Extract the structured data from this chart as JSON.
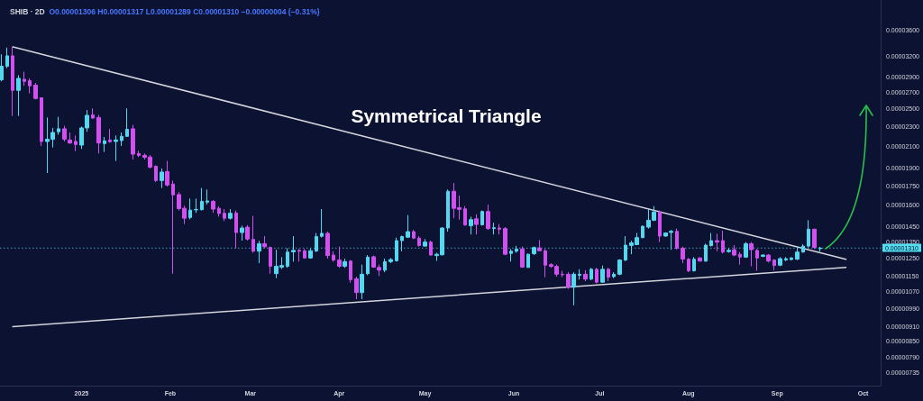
{
  "chart_data": {
    "type": "candlestick",
    "title": "SHIB · 2D",
    "subtitle": "O0.00001306 H0.00001317 L0.00001289 C0.00001310 −0.00000004 (−0.31%)",
    "annotations": [
      "Symmetrical Triangle"
    ],
    "x": [
      "2024-12-04",
      "2024-12-06",
      "2024-12-08",
      "2024-12-10",
      "2024-12-12",
      "2024-12-14",
      "2024-12-16",
      "2024-12-18",
      "2024-12-20",
      "2024-12-22",
      "2024-12-24",
      "2024-12-26",
      "2024-12-28",
      "2024-12-30",
      "2025-01-01",
      "2025-01-03",
      "2025-01-05",
      "2025-01-07",
      "2025-01-09",
      "2025-01-11",
      "2025-01-13",
      "2025-01-15",
      "2025-01-17",
      "2025-01-19",
      "2025-01-21",
      "2025-01-23",
      "2025-01-25",
      "2025-01-27",
      "2025-01-29",
      "2025-01-31",
      "2025-02-02",
      "2025-02-04",
      "2025-02-06",
      "2025-02-08",
      "2025-02-10",
      "2025-02-12",
      "2025-02-14",
      "2025-02-16",
      "2025-02-18",
      "2025-02-20",
      "2025-02-22",
      "2025-02-24",
      "2025-02-26",
      "2025-02-28",
      "2025-03-02",
      "2025-03-04",
      "2025-03-06",
      "2025-03-08",
      "2025-03-10",
      "2025-03-12",
      "2025-03-14",
      "2025-03-16",
      "2025-03-18",
      "2025-03-20",
      "2025-03-22",
      "2025-03-24",
      "2025-03-26",
      "2025-03-28",
      "2025-03-30",
      "2025-04-01",
      "2025-04-03",
      "2025-04-05",
      "2025-04-07",
      "2025-04-09",
      "2025-04-11",
      "2025-04-13",
      "2025-04-15",
      "2025-04-17",
      "2025-04-19",
      "2025-04-21",
      "2025-04-23",
      "2025-04-25",
      "2025-04-27",
      "2025-04-29",
      "2025-05-01",
      "2025-05-03",
      "2025-05-05",
      "2025-05-07",
      "2025-05-09",
      "2025-05-11",
      "2025-05-13",
      "2025-05-15",
      "2025-05-17",
      "2025-05-19",
      "2025-05-21",
      "2025-05-23",
      "2025-05-25",
      "2025-05-27",
      "2025-05-29",
      "2025-05-31",
      "2025-06-02",
      "2025-06-04",
      "2025-06-06",
      "2025-06-08",
      "2025-06-10",
      "2025-06-12",
      "2025-06-14",
      "2025-06-16",
      "2025-06-18",
      "2025-06-20",
      "2025-06-22",
      "2025-06-24",
      "2025-06-26",
      "2025-06-28",
      "2025-06-30",
      "2025-07-02",
      "2025-07-04",
      "2025-07-06",
      "2025-07-08",
      "2025-07-10",
      "2025-07-12",
      "2025-07-14",
      "2025-07-16",
      "2025-07-18",
      "2025-07-20",
      "2025-07-22",
      "2025-07-24",
      "2025-07-26",
      "2025-07-28",
      "2025-07-30",
      "2025-08-01",
      "2025-08-03",
      "2025-08-05",
      "2025-08-07",
      "2025-08-09",
      "2025-08-11",
      "2025-08-13",
      "2025-08-15",
      "2025-08-17",
      "2025-08-19",
      "2025-08-21",
      "2025-08-23",
      "2025-08-25",
      "2025-08-27",
      "2025-08-29",
      "2025-08-31",
      "2025-09-02",
      "2025-09-04",
      "2025-09-06",
      "2025-09-08",
      "2025-09-10",
      "2025-09-12",
      "2025-09-14",
      "2025-09-16"
    ],
    "ohlc": [
      [
        2.864e-05,
        3.224e-05,
        2.843e-05,
        3.05e-05
      ],
      [
        3.05e-05,
        3.325e-05,
        3.022e-05,
        3.202e-05
      ],
      [
        3.202e-05,
        3.339e-05,
        2.421e-05,
        2.727e-05
      ],
      [
        2.727e-05,
        2.925e-05,
        2.421e-05,
        2.883e-05
      ],
      [
        2.871e-05,
        2.974e-05,
        2.785e-05,
        2.843e-05
      ],
      [
        2.852e-05,
        2.883e-05,
        2.69e-05,
        2.785e-05
      ],
      [
        2.793e-05,
        2.823e-05,
        2.615e-05,
        2.626e-05
      ],
      [
        2.634e-05,
        2.637e-05,
        2.105e-05,
        2.15e-05
      ],
      [
        2.15e-05,
        2.404e-05,
        1.857e-05,
        2.172e-05
      ],
      [
        2.172e-05,
        2.29e-05,
        2.091e-05,
        2.242e-05
      ],
      [
        2.249e-05,
        2.411e-05,
        2.218e-05,
        2.281e-05
      ],
      [
        2.281e-05,
        2.313e-05,
        2.15e-05,
        2.172e-05
      ],
      [
        2.165e-05,
        2.242e-05,
        2.126e-05,
        2.135e-05
      ],
      [
        2.15e-05,
        2.211e-05,
        2.056e-05,
        2.12e-05
      ],
      [
        2.114e-05,
        2.306e-05,
        2.077e-05,
        2.29e-05
      ],
      [
        2.29e-05,
        2.489e-05,
        2.249e-05,
        2.428e-05
      ],
      [
        2.432e-05,
        2.507e-05,
        2.387e-05,
        2.397e-05
      ],
      [
        2.404e-05,
        2.432e-05,
        2.033e-05,
        2.135e-05
      ],
      [
        2.129e-05,
        2.196e-05,
        2.048e-05,
        2.156e-05
      ],
      [
        2.165e-05,
        2.278e-05,
        2.138e-05,
        2.147e-05
      ],
      [
        2.15e-05,
        2.211e-05,
        1.964e-05,
        2.165e-05
      ],
      [
        2.159e-05,
        2.242e-05,
        2.105e-05,
        2.202e-05
      ],
      [
        2.202e-05,
        2.507e-05,
        2.196e-05,
        2.275e-05
      ],
      [
        2.281e-05,
        2.323e-05,
        1.977e-05,
        2.027e-05
      ],
      [
        2.033e-05,
        2.059e-05,
        2e-05,
        2.014e-05
      ],
      [
        2.016e-05,
        2.033e-05,
        1.977e-05,
        1.997e-05
      ],
      [
        2e-05,
        2.019e-05,
        1.896e-05,
        1.908e-05
      ],
      [
        1.916e-05,
        1.924e-05,
        1.781e-05,
        1.793e-05
      ],
      [
        1.793e-05,
        1.896e-05,
        1.732e-05,
        1.865e-05
      ],
      [
        1.87e-05,
        1.964e-05,
        1.744e-05,
        1.756e-05
      ],
      [
        1.764e-05,
        1.793e-05,
        1.163e-05,
        1.677e-05
      ],
      [
        1.68e-05,
        1.699e-05,
        1.56e-05,
        1.574e-05
      ],
      [
        1.576e-05,
        1.595e-05,
        1.465e-05,
        1.505e-05
      ],
      [
        1.51e-05,
        1.649e-05,
        1.497e-05,
        1.563e-05
      ],
      [
        1.565e-05,
        1.649e-05,
        1.543e-05,
        1.568e-05
      ],
      [
        1.566e-05,
        1.732e-05,
        1.56e-05,
        1.627e-05
      ],
      [
        1.622e-05,
        1.72e-05,
        1.603e-05,
        1.631e-05
      ],
      [
        1.627e-05,
        1.638e-05,
        1.543e-05,
        1.57e-05
      ],
      [
        1.576e-05,
        1.592e-05,
        1.516e-05,
        1.538e-05
      ],
      [
        1.54e-05,
        1.57e-05,
        1.485e-05,
        1.505e-05
      ],
      [
        1.505e-05,
        1.57e-05,
        1.495e-05,
        1.54e-05
      ],
      [
        1.542e-05,
        1.56e-05,
        1.309e-05,
        1.408e-05
      ],
      [
        1.408e-05,
        1.454e-05,
        1.356e-05,
        1.438e-05
      ],
      [
        1.444e-05,
        1.458e-05,
        1.356e-05,
        1.366e-05
      ],
      [
        1.364e-05,
        1.521e-05,
        1.282e-05,
        1.291e-05
      ],
      [
        1.291e-05,
        1.355e-05,
        1.221e-05,
        1.337e-05
      ],
      [
        1.337e-05,
        1.385e-05,
        1.309e-05,
        1.318e-05
      ],
      [
        1.313e-05,
        1.32e-05,
        1.163e-05,
        1.204e-05
      ],
      [
        1.163e-05,
        1.3e-05,
        1.139e-05,
        1.204e-05
      ],
      [
        1.199e-05,
        1.256e-05,
        1.188e-05,
        1.208e-05
      ],
      [
        1.204e-05,
        1.309e-05,
        1.195e-05,
        1.286e-05
      ],
      [
        1.287e-05,
        1.385e-05,
        1.23e-05,
        1.296e-05
      ],
      [
        1.296e-05,
        1.304e-05,
        1.23e-05,
        1.291e-05
      ],
      [
        1.294e-05,
        1.304e-05,
        1.247e-05,
        1.251e-05
      ],
      [
        1.251e-05,
        1.309e-05,
        1.247e-05,
        1.294e-05
      ],
      [
        1.293e-05,
        1.405e-05,
        1.286e-05,
        1.382e-05
      ],
      [
        1.384e-05,
        1.57e-05,
        1.376e-05,
        1.403e-05
      ],
      [
        1.403e-05,
        1.414e-05,
        1.247e-05,
        1.265e-05
      ],
      [
        1.268e-05,
        1.291e-05,
        1.23e-05,
        1.239e-05
      ],
      [
        1.239e-05,
        1.319e-05,
        1.195e-05,
        1.204e-05
      ],
      [
        1.204e-05,
        1.247e-05,
        1.195e-05,
        1.23e-05
      ],
      [
        1.233e-05,
        1.239e-05,
        1.115e-05,
        1.131e-05
      ],
      [
        1.136e-05,
        1.147e-05,
        1.033e-05,
        1.065e-05
      ],
      [
        1.065e-05,
        1.213e-05,
        1.033e-05,
        1.16e-05
      ],
      [
        1.163e-05,
        1.268e-05,
        1.155e-05,
        1.256e-05
      ],
      [
        1.258e-05,
        1.265e-05,
        1.195e-05,
        1.199e-05
      ],
      [
        1.197e-05,
        1.213e-05,
        1.15e-05,
        1.182e-05
      ],
      [
        1.182e-05,
        1.247e-05,
        1.171e-05,
        1.23e-05
      ],
      [
        1.23e-05,
        1.251e-05,
        1.221e-05,
        1.242e-05
      ],
      [
        1.235e-05,
        1.375e-05,
        1.23e-05,
        1.356e-05
      ],
      [
        1.356e-05,
        1.388e-05,
        1.291e-05,
        1.382e-05
      ],
      [
        1.378e-05,
        1.527e-05,
        1.372e-05,
        1.414e-05
      ],
      [
        1.414e-05,
        1.425e-05,
        1.366e-05,
        1.372e-05
      ],
      [
        1.372e-05,
        1.385e-05,
        1.319e-05,
        1.326e-05
      ],
      [
        1.322e-05,
        1.366e-05,
        1.319e-05,
        1.347e-05
      ],
      [
        1.347e-05,
        1.356e-05,
        1.265e-05,
        1.268e-05
      ],
      [
        1.265e-05,
        1.282e-05,
        1.234e-05,
        1.273e-05
      ],
      [
        1.27e-05,
        1.444e-05,
        1.265e-05,
        1.438e-05
      ],
      [
        1.438e-05,
        1.72e-05,
        1.414e-05,
        1.706e-05
      ],
      [
        1.706e-05,
        1.773e-05,
        1.505e-05,
        1.576e-05
      ],
      [
        1.581e-05,
        1.672e-05,
        1.495e-05,
        1.568e-05
      ],
      [
        1.572e-05,
        1.592e-05,
        1.454e-05,
        1.458e-05
      ],
      [
        1.454e-05,
        1.516e-05,
        1.395e-05,
        1.495e-05
      ],
      [
        1.501e-05,
        1.533e-05,
        1.395e-05,
        1.462e-05
      ],
      [
        1.46e-05,
        1.56e-05,
        1.454e-05,
        1.553e-05
      ],
      [
        1.553e-05,
        1.603e-05,
        1.425e-05,
        1.434e-05
      ],
      [
        1.434e-05,
        1.474e-05,
        1.395e-05,
        1.44e-05
      ],
      [
        1.438e-05,
        1.465e-05,
        1.395e-05,
        1.43e-05
      ],
      [
        1.434e-05,
        1.444e-05,
        1.268e-05,
        1.273e-05
      ],
      [
        1.278e-05,
        1.304e-05,
        1.23e-05,
        1.291e-05
      ],
      [
        1.291e-05,
        1.324e-05,
        1.282e-05,
        1.304e-05
      ],
      [
        1.304e-05,
        1.319e-05,
        1.195e-05,
        1.199e-05
      ],
      [
        1.197e-05,
        1.278e-05,
        1.195e-05,
        1.273e-05
      ],
      [
        1.276e-05,
        1.319e-05,
        1.268e-05,
        1.313e-05
      ],
      [
        1.311e-05,
        1.36e-05,
        1.291e-05,
        1.294e-05
      ],
      [
        1.294e-05,
        1.304e-05,
        1.144e-05,
        1.21e-05
      ],
      [
        1.213e-05,
        1.221e-05,
        1.195e-05,
        1.203e-05
      ],
      [
        1.203e-05,
        1.213e-05,
        1.147e-05,
        1.16e-05
      ],
      [
        1.16e-05,
        1.179e-05,
        1.144e-05,
        1.158e-05
      ],
      [
        1.16e-05,
        1.171e-05,
        1.084e-05,
        1.092e-05
      ],
      [
        1.092e-05,
        1.171e-05,
        1.004e-05,
        1.16e-05
      ],
      [
        1.154e-05,
        1.187e-05,
        1.131e-05,
        1.16e-05
      ],
      [
        1.16e-05,
        1.182e-05,
        1.123e-05,
        1.134e-05
      ],
      [
        1.134e-05,
        1.195e-05,
        1.128e-05,
        1.187e-05
      ],
      [
        1.187e-05,
        1.195e-05,
        1.112e-05,
        1.118e-05
      ],
      [
        1.118e-05,
        1.208e-05,
        1.115e-05,
        1.187e-05
      ],
      [
        1.187e-05,
        1.195e-05,
        1.123e-05,
        1.144e-05
      ],
      [
        1.147e-05,
        1.171e-05,
        1.139e-05,
        1.16e-05
      ],
      [
        1.16e-05,
        1.244e-05,
        1.155e-05,
        1.239e-05
      ],
      [
        1.239e-05,
        1.385e-05,
        1.233e-05,
        1.328e-05
      ],
      [
        1.326e-05,
        1.356e-05,
        1.273e-05,
        1.342e-05
      ],
      [
        1.331e-05,
        1.405e-05,
        1.328e-05,
        1.375e-05
      ],
      [
        1.375e-05,
        1.454e-05,
        1.372e-05,
        1.45e-05
      ],
      [
        1.444e-05,
        1.57e-05,
        1.434e-05,
        1.491e-05
      ],
      [
        1.491e-05,
        1.592e-05,
        1.485e-05,
        1.549e-05
      ],
      [
        1.549e-05,
        1.56e-05,
        1.347e-05,
        1.385e-05
      ],
      [
        1.385e-05,
        1.409e-05,
        1.382e-05,
        1.405e-05
      ],
      [
        1.409e-05,
        1.425e-05,
        1.3e-05,
        1.416e-05
      ],
      [
        1.416e-05,
        1.434e-05,
        1.3e-05,
        1.309e-05
      ],
      [
        1.309e-05,
        1.319e-05,
        1.221e-05,
        1.245e-05
      ],
      [
        1.244e-05,
        1.251e-05,
        1.171e-05,
        1.179e-05
      ],
      [
        1.179e-05,
        1.256e-05,
        1.174e-05,
        1.244e-05
      ],
      [
        1.251e-05,
        1.256e-05,
        1.23e-05,
        1.233e-05
      ],
      [
        1.233e-05,
        1.337e-05,
        1.23e-05,
        1.328e-05
      ],
      [
        1.325e-05,
        1.405e-05,
        1.319e-05,
        1.356e-05
      ],
      [
        1.356e-05,
        1.4e-05,
        1.291e-05,
        1.347e-05
      ],
      [
        1.356e-05,
        1.42e-05,
        1.278e-05,
        1.286e-05
      ],
      [
        1.289e-05,
        1.309e-05,
        1.282e-05,
        1.296e-05
      ],
      [
        1.3e-05,
        1.328e-05,
        1.261e-05,
        1.268e-05
      ],
      [
        1.273e-05,
        1.286e-05,
        1.213e-05,
        1.256e-05
      ],
      [
        1.256e-05,
        1.347e-05,
        1.251e-05,
        1.337e-05
      ],
      [
        1.337e-05,
        1.347e-05,
        1.204e-05,
        1.3e-05
      ],
      [
        1.296e-05,
        1.304e-05,
        1.179e-05,
        1.251e-05
      ],
      [
        1.261e-05,
        1.273e-05,
        1.256e-05,
        1.268e-05
      ],
      [
        1.268e-05,
        1.273e-05,
        1.226e-05,
        1.233e-05
      ],
      [
        1.239e-05,
        1.244e-05,
        1.182e-05,
        1.208e-05
      ],
      [
        1.21e-05,
        1.256e-05,
        1.204e-05,
        1.247e-05
      ],
      [
        1.24e-05,
        1.256e-05,
        1.233e-05,
        1.247e-05
      ],
      [
        1.242e-05,
        1.256e-05,
        1.237e-05,
        1.251e-05
      ],
      [
        1.244e-05,
        1.319e-05,
        1.239e-05,
        1.286e-05
      ],
      [
        1.286e-05,
        1.333e-05,
        1.282e-05,
        1.322e-05
      ],
      [
        1.322e-05,
        1.491e-05,
        1.313e-05,
        1.43e-05
      ],
      [
        1.43e-05,
        1.434e-05,
        1.304e-05,
        1.314e-05
      ],
      [
        1.306e-05,
        1.317e-05,
        1.289e-05,
        1.31e-05
      ]
    ],
    "series": [
      {
        "type": "line",
        "x": [
          "2024-12-08",
          "2025-09-25"
        ],
        "values": [
          3.339e-05,
          1.243e-05
        ],
        "color": "#d4d4dc"
      },
      {
        "type": "line",
        "x": [
          "2024-12-08",
          "2025-09-25"
        ],
        "values": [
          9.09e-06,
          1.198e-05
        ],
        "color": "#d4d4dc"
      }
    ],
    "xlim": [
      "2024-12-03T13:00",
      "2025-10-07T03:00"
    ],
    "xticks": [
      {
        "value": "2025-01-01",
        "label": "2025"
      },
      {
        "value": "2025-02-01",
        "label": "Feb"
      },
      {
        "value": "2025-03-01",
        "label": "Mar"
      },
      {
        "value": "2025-04-01",
        "label": "Apr"
      },
      {
        "value": "2025-05-01",
        "label": "May"
      },
      {
        "value": "2025-06-01",
        "label": "Jun"
      },
      {
        "value": "2025-07-01",
        "label": "Jul"
      },
      {
        "value": "2025-08-01",
        "label": "Aug"
      },
      {
        "value": "2025-09-01",
        "label": "Sep"
      },
      {
        "value": "2025-10-01",
        "label": "Oct"
      }
    ],
    "log": true,
    "ylim": [
      6.91e-06,
      4.15e-05
    ],
    "yticks": [
      {
        "value": 3.6e-05,
        "label": "0.00003600"
      },
      {
        "value": 3.2e-05,
        "label": "0.00003200"
      },
      {
        "value": 2.9e-05,
        "label": "0.00002900"
      },
      {
        "value": 2.7e-05,
        "label": "0.00002700"
      },
      {
        "value": 2.5e-05,
        "label": "0.00002500"
      },
      {
        "value": 2.3e-05,
        "label": "0.00002300"
      },
      {
        "value": 2.1e-05,
        "label": "0.00002100"
      },
      {
        "value": 1.9e-05,
        "label": "0.00001900"
      },
      {
        "value": 1.75e-05,
        "label": "0.00001750"
      },
      {
        "value": 1.6e-05,
        "label": "0.00001600"
      },
      {
        "value": 1.45e-05,
        "label": "0.00001450"
      },
      {
        "value": 1.35e-05,
        "label": "0.00001350"
      },
      {
        "value": 1.25e-05,
        "label": "0.00001250"
      },
      {
        "value": 1.15e-05,
        "label": "0.00001150"
      },
      {
        "value": 1.07e-05,
        "label": "0.00001070"
      },
      {
        "value": 9.9e-06,
        "label": "0.00000990"
      },
      {
        "value": 9.1e-06,
        "label": "0.00000910"
      },
      {
        "value": 8.5e-06,
        "label": "0.00000850"
      },
      {
        "value": 7.9e-06,
        "label": "0.00000790"
      },
      {
        "value": 7.35e-06,
        "label": "0.00000735"
      }
    ],
    "ref_lines": [
      {
        "axis": "y",
        "value": 1.31e-05,
        "label": "0.00001310",
        "color": "#52dff0",
        "line_style": "dotted"
      }
    ]
  }
}
